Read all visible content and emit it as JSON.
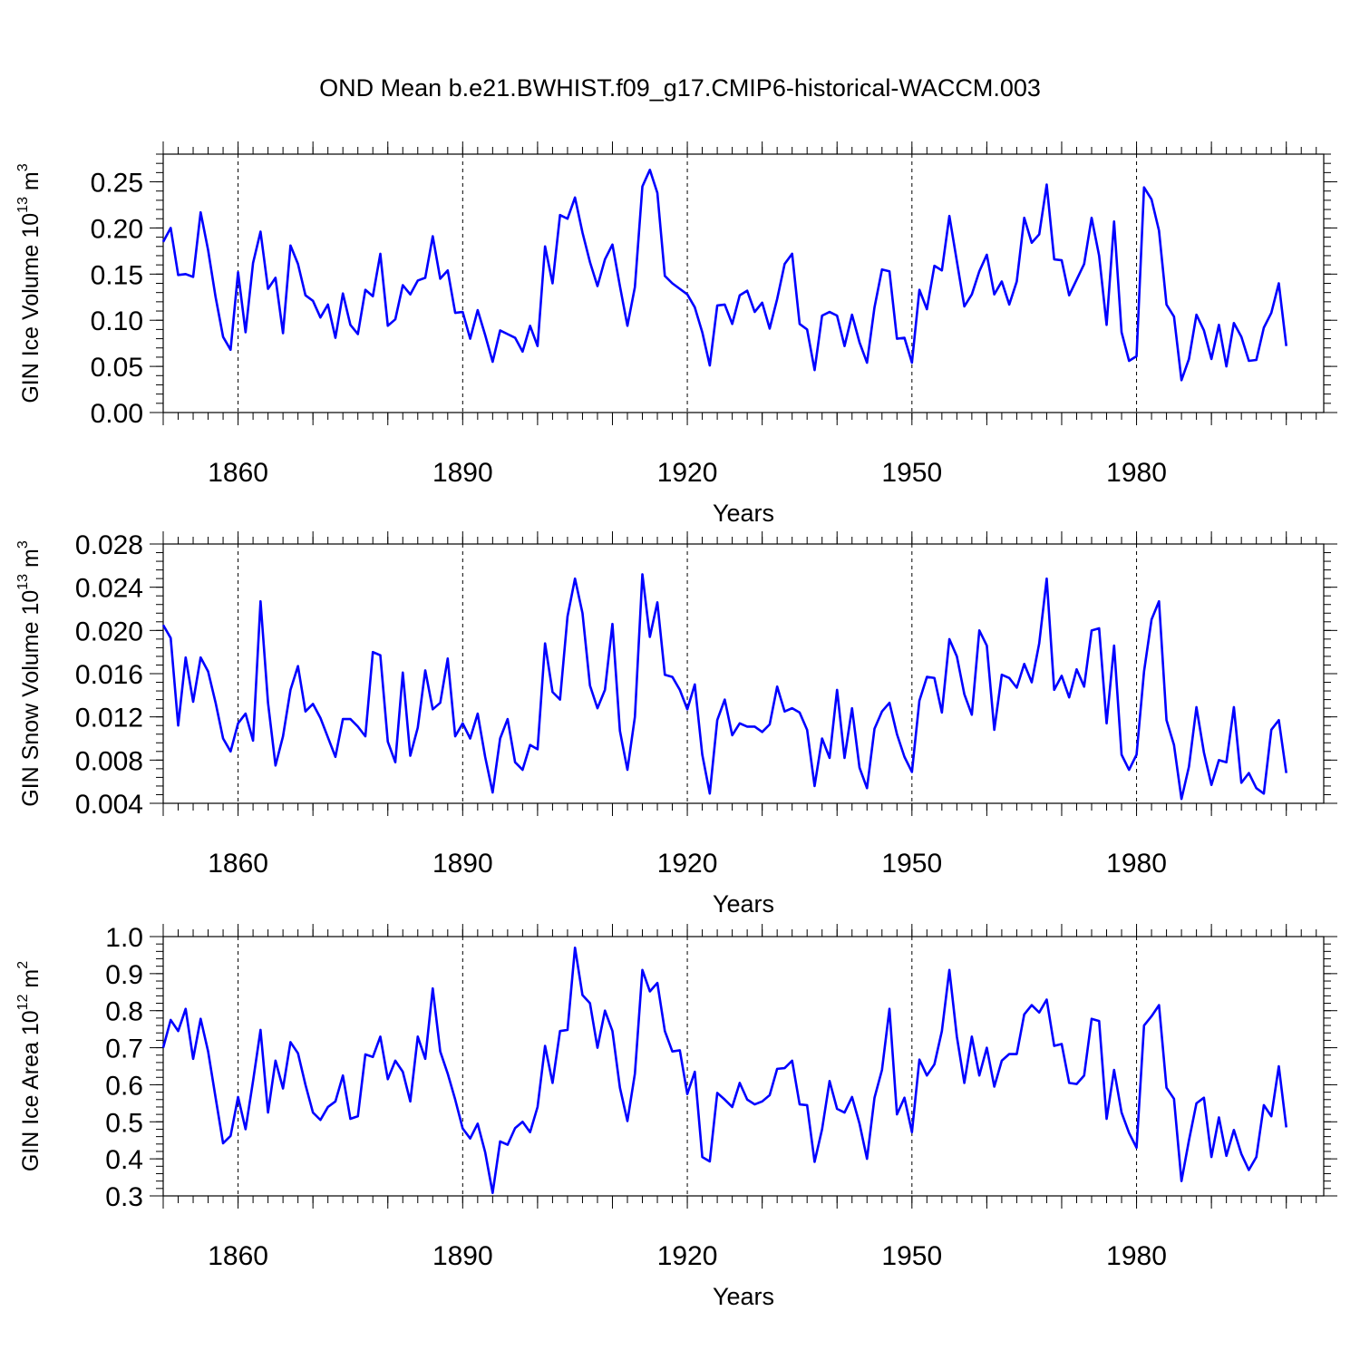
{
  "figure_title": "OND Mean b.e21.BWHIST.f09_g17.CMIP6-historical-WACCM.003",
  "line_color": "#0000ff",
  "chart_data": [
    {
      "type": "line",
      "title": "OND Mean b.e21.BWHIST.f09_g17.CMIP6-historical-WACCM.003",
      "xlabel": "Years",
      "ylabel_main": "GIN Ice Volume 10",
      "ylabel_exp": "13",
      "ylabel_unit": " m",
      "ylabel_unit_exp": "3",
      "xlim": [
        1850,
        2005
      ],
      "ylim": [
        0.0,
        0.28
      ],
      "yticks": [
        0.0,
        0.05,
        0.1,
        0.15,
        0.2,
        0.25
      ],
      "ytick_labels": [
        "0.00",
        "0.05",
        "0.10",
        "0.15",
        "0.20",
        "0.25"
      ],
      "xticks": [
        1860,
        1890,
        1920,
        1950,
        1980
      ],
      "xtick_labels": [
        "1860",
        "1890",
        "1920",
        "1950",
        "1980"
      ],
      "grid_x": [
        1860,
        1890,
        1920,
        1950,
        1980
      ],
      "x_start": 1850,
      "series": [
        {
          "name": "GIN Ice Volume",
          "values": [
            0.185,
            0.2,
            0.149,
            0.15,
            0.147,
            0.217,
            0.176,
            0.125,
            0.082,
            0.068,
            0.152,
            0.087,
            0.162,
            0.196,
            0.134,
            0.146,
            0.086,
            0.181,
            0.161,
            0.127,
            0.121,
            0.103,
            0.117,
            0.081,
            0.129,
            0.095,
            0.085,
            0.133,
            0.126,
            0.172,
            0.094,
            0.101,
            0.138,
            0.128,
            0.143,
            0.146,
            0.191,
            0.145,
            0.154,
            0.108,
            0.109,
            0.08,
            0.111,
            0.084,
            0.055,
            0.089,
            0.085,
            0.081,
            0.066,
            0.094,
            0.072,
            0.18,
            0.14,
            0.214,
            0.21,
            0.233,
            0.195,
            0.163,
            0.137,
            0.166,
            0.182,
            0.137,
            0.094,
            0.136,
            0.245,
            0.263,
            0.238,
            0.148,
            0.14,
            0.134,
            0.128,
            0.114,
            0.087,
            0.051,
            0.116,
            0.117,
            0.096,
            0.127,
            0.132,
            0.109,
            0.119,
            0.091,
            0.123,
            0.161,
            0.172,
            0.096,
            0.09,
            0.046,
            0.105,
            0.109,
            0.105,
            0.072,
            0.106,
            0.076,
            0.054,
            0.114,
            0.155,
            0.153,
            0.08,
            0.081,
            0.054,
            0.133,
            0.112,
            0.159,
            0.154,
            0.213,
            0.164,
            0.115,
            0.128,
            0.153,
            0.171,
            0.128,
            0.142,
            0.117,
            0.142,
            0.211,
            0.184,
            0.193,
            0.247,
            0.166,
            0.165,
            0.127,
            0.144,
            0.161,
            0.211,
            0.17,
            0.095,
            0.207,
            0.087,
            0.056,
            0.061,
            0.244,
            0.231,
            0.197,
            0.117,
            0.104,
            0.035,
            0.058,
            0.106,
            0.089,
            0.058,
            0.095,
            0.05,
            0.097,
            0.082,
            0.056,
            0.057,
            0.092,
            0.108,
            0.14,
            0.072
          ]
        }
      ]
    },
    {
      "type": "line",
      "xlabel": "Years",
      "ylabel_main": "GIN Snow Volume 10",
      "ylabel_exp": "13",
      "ylabel_unit": " m",
      "ylabel_unit_exp": "3",
      "xlim": [
        1850,
        2005
      ],
      "ylim": [
        0.004,
        0.028
      ],
      "yticks": [
        0.004,
        0.008,
        0.012,
        0.016,
        0.02,
        0.024,
        0.028
      ],
      "ytick_labels": [
        "0.004",
        "0.008",
        "0.012",
        "0.016",
        "0.020",
        "0.024",
        "0.028"
      ],
      "xticks": [
        1860,
        1890,
        1920,
        1950,
        1980
      ],
      "xtick_labels": [
        "1860",
        "1890",
        "1920",
        "1950",
        "1980"
      ],
      "grid_x": [
        1860,
        1890,
        1920,
        1950,
        1980
      ],
      "x_start": 1850,
      "series": [
        {
          "name": "GIN Snow Volume",
          "values": [
            0.0205,
            0.0193,
            0.0112,
            0.0175,
            0.0134,
            0.0175,
            0.0162,
            0.0133,
            0.01,
            0.0088,
            0.0114,
            0.0123,
            0.0098,
            0.0227,
            0.0133,
            0.0075,
            0.0102,
            0.0145,
            0.0167,
            0.0125,
            0.0132,
            0.0119,
            0.0101,
            0.0083,
            0.0118,
            0.0118,
            0.0111,
            0.0102,
            0.018,
            0.0177,
            0.0097,
            0.0078,
            0.0161,
            0.0084,
            0.011,
            0.0163,
            0.0127,
            0.0133,
            0.0174,
            0.0102,
            0.0114,
            0.01,
            0.0123,
            0.0083,
            0.005,
            0.01,
            0.0118,
            0.0078,
            0.0071,
            0.0094,
            0.009,
            0.0188,
            0.0143,
            0.0136,
            0.0213,
            0.0248,
            0.0216,
            0.0149,
            0.0128,
            0.0145,
            0.0206,
            0.0107,
            0.0071,
            0.012,
            0.0252,
            0.0194,
            0.0226,
            0.0159,
            0.0157,
            0.0145,
            0.0127,
            0.015,
            0.0085,
            0.0049,
            0.0117,
            0.0136,
            0.0103,
            0.0114,
            0.0111,
            0.0111,
            0.0106,
            0.0113,
            0.0148,
            0.0125,
            0.0128,
            0.0124,
            0.0108,
            0.0056,
            0.01,
            0.0082,
            0.0145,
            0.0082,
            0.0128,
            0.0073,
            0.0054,
            0.0109,
            0.0125,
            0.0133,
            0.0104,
            0.0083,
            0.0069,
            0.0135,
            0.0157,
            0.0156,
            0.0124,
            0.0192,
            0.0176,
            0.0141,
            0.0122,
            0.02,
            0.0186,
            0.0108,
            0.0159,
            0.0156,
            0.0147,
            0.0169,
            0.0152,
            0.0188,
            0.0248,
            0.0145,
            0.0158,
            0.0138,
            0.0164,
            0.0148,
            0.02,
            0.0202,
            0.0114,
            0.0186,
            0.0085,
            0.0071,
            0.0085,
            0.0162,
            0.021,
            0.0227,
            0.0117,
            0.0094,
            0.0044,
            0.0074,
            0.0129,
            0.0087,
            0.0057,
            0.008,
            0.0078,
            0.0129,
            0.0059,
            0.0068,
            0.0054,
            0.0049,
            0.0108,
            0.0117,
            0.0068
          ]
        }
      ]
    },
    {
      "type": "line",
      "xlabel": "Years",
      "ylabel_main": "GIN Ice Area 10",
      "ylabel_exp": "12",
      "ylabel_unit": " m",
      "ylabel_unit_exp": "2",
      "xlim": [
        1850,
        2005
      ],
      "ylim": [
        0.3,
        1.0
      ],
      "yticks": [
        0.3,
        0.4,
        0.5,
        0.6,
        0.7,
        0.8,
        0.9,
        1.0
      ],
      "ytick_labels": [
        "0.3",
        "0.4",
        "0.5",
        "0.6",
        "0.7",
        "0.8",
        "0.9",
        "1.0"
      ],
      "xticks": [
        1860,
        1890,
        1920,
        1950,
        1980
      ],
      "xtick_labels": [
        "1860",
        "1890",
        "1920",
        "1950",
        "1980"
      ],
      "grid_x": [
        1860,
        1890,
        1920,
        1950,
        1980
      ],
      "x_start": 1850,
      "series": [
        {
          "name": "GIN Ice Area",
          "values": [
            0.7,
            0.775,
            0.745,
            0.805,
            0.67,
            0.778,
            0.69,
            0.565,
            0.442,
            0.462,
            0.567,
            0.48,
            0.61,
            0.748,
            0.525,
            0.665,
            0.59,
            0.715,
            0.685,
            0.6,
            0.525,
            0.505,
            0.54,
            0.555,
            0.625,
            0.508,
            0.515,
            0.682,
            0.675,
            0.73,
            0.615,
            0.665,
            0.635,
            0.555,
            0.73,
            0.67,
            0.86,
            0.69,
            0.63,
            0.56,
            0.482,
            0.455,
            0.495,
            0.418,
            0.308,
            0.447,
            0.438,
            0.483,
            0.5,
            0.472,
            0.54,
            0.705,
            0.605,
            0.745,
            0.748,
            0.97,
            0.842,
            0.82,
            0.7,
            0.8,
            0.745,
            0.592,
            0.502,
            0.63,
            0.91,
            0.852,
            0.875,
            0.745,
            0.69,
            0.693,
            0.575,
            0.635,
            0.405,
            0.393,
            0.578,
            0.56,
            0.54,
            0.605,
            0.56,
            0.547,
            0.555,
            0.572,
            0.643,
            0.645,
            0.665,
            0.547,
            0.545,
            0.392,
            0.48,
            0.61,
            0.535,
            0.525,
            0.567,
            0.495,
            0.4,
            0.565,
            0.64,
            0.805,
            0.52,
            0.565,
            0.472,
            0.668,
            0.625,
            0.655,
            0.745,
            0.91,
            0.73,
            0.605,
            0.73,
            0.625,
            0.7,
            0.595,
            0.665,
            0.683,
            0.683,
            0.79,
            0.815,
            0.795,
            0.83,
            0.705,
            0.71,
            0.605,
            0.602,
            0.625,
            0.778,
            0.772,
            0.508,
            0.64,
            0.525,
            0.47,
            0.43,
            0.76,
            0.785,
            0.815,
            0.592,
            0.562,
            0.34,
            0.45,
            0.55,
            0.565,
            0.405,
            0.512,
            0.408,
            0.478,
            0.413,
            0.37,
            0.405,
            0.545,
            0.515,
            0.65,
            0.485
          ]
        }
      ]
    }
  ]
}
